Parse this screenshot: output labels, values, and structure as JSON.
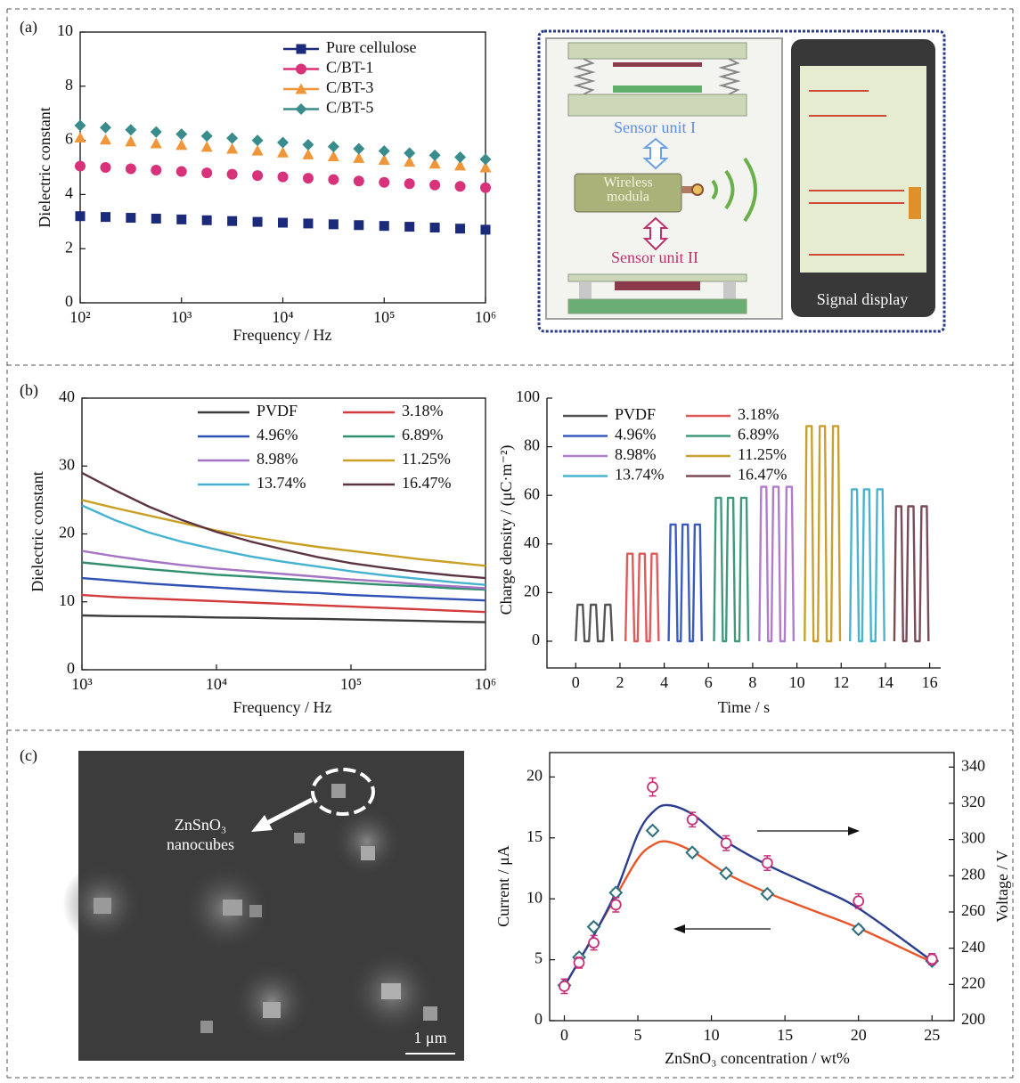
{
  "panel_labels": [
    "(a)",
    "(b)",
    "(c)"
  ],
  "diagram": {
    "sensor_unit_1": "Sensor unit I",
    "wireless_module": [
      "Wireless",
      "modula"
    ],
    "sensor_unit_2": "Sensor unit II",
    "signal_display": "Signal display"
  },
  "micrograph": {
    "label": [
      "ZnSnO₃",
      "nanocubes"
    ],
    "scale_bar": "1 μm"
  },
  "chart_data": [
    {
      "type": "line",
      "xlabel": "Frequency / Hz",
      "ylabel": "Dielectric constant",
      "xscale": "log",
      "xlim": [
        100,
        1000000
      ],
      "ylim": [
        0,
        10
      ],
      "xticks": [
        {
          "value": 100,
          "label": "10²"
        },
        {
          "value": 1000,
          "label": "10³"
        },
        {
          "value": 10000,
          "label": "10⁴"
        },
        {
          "value": 100000,
          "label": "10⁵"
        },
        {
          "value": 1000000,
          "label": "10⁶"
        }
      ],
      "yticks": [
        0,
        2,
        4,
        6,
        8,
        10
      ],
      "x": [
        100,
        178,
        316,
        562,
        1000,
        1778,
        3162,
        5623,
        10000,
        17783,
        31623,
        56234,
        100000,
        177828,
        316228,
        562341,
        1000000
      ],
      "series": [
        {
          "name": "Pure cellulose",
          "color": "#1b2a7a",
          "marker": "square",
          "line": false,
          "values": [
            3.2,
            3.17,
            3.14,
            3.11,
            3.08,
            3.05,
            3.02,
            2.99,
            2.96,
            2.93,
            2.9,
            2.87,
            2.84,
            2.81,
            2.78,
            2.74,
            2.7
          ]
        },
        {
          "name": "C/BT-1",
          "color": "#d8327a",
          "marker": "circle",
          "line": false,
          "values": [
            5.05,
            5.0,
            4.95,
            4.9,
            4.85,
            4.8,
            4.75,
            4.7,
            4.65,
            4.6,
            4.55,
            4.5,
            4.45,
            4.4,
            4.35,
            4.3,
            4.25
          ]
        },
        {
          "name": "C/BT-3",
          "color": "#f0963a",
          "marker": "triangle",
          "line": false,
          "values": [
            6.1,
            6.03,
            5.96,
            5.89,
            5.83,
            5.76,
            5.69,
            5.62,
            5.55,
            5.48,
            5.41,
            5.35,
            5.28,
            5.21,
            5.14,
            5.07,
            5.0
          ]
        },
        {
          "name": "C/BT-5",
          "color": "#3a8c8c",
          "marker": "diamond",
          "line": false,
          "values": [
            6.55,
            6.47,
            6.39,
            6.31,
            6.23,
            6.16,
            6.08,
            6.0,
            5.92,
            5.84,
            5.77,
            5.69,
            5.61,
            5.53,
            5.45,
            5.38,
            5.3
          ]
        }
      ]
    },
    {
      "type": "line",
      "xlabel": "Frequency / Hz",
      "ylabel": "Dielectric constant",
      "xscale": "log",
      "xlim": [
        1000,
        1000000
      ],
      "ylim": [
        0,
        40
      ],
      "xticks": [
        {
          "value": 1000,
          "label": "10³"
        },
        {
          "value": 10000,
          "label": "10⁴"
        },
        {
          "value": 100000,
          "label": "10⁵"
        },
        {
          "value": 1000000,
          "label": "10⁶"
        }
      ],
      "yticks": [
        0,
        10,
        20,
        30,
        40
      ],
      "x": [
        1000,
        1778,
        3162,
        5623,
        10000,
        17783,
        31623,
        56234,
        100000,
        177828,
        316228,
        562341,
        1000000
      ],
      "series": [
        {
          "name": "PVDF",
          "color": "#3c3c3c",
          "values": [
            8.0,
            7.9,
            7.85,
            7.8,
            7.7,
            7.65,
            7.55,
            7.5,
            7.4,
            7.3,
            7.2,
            7.1,
            7.0
          ]
        },
        {
          "name": "3.18%",
          "color": "#d23c3c",
          "values": [
            11.0,
            10.7,
            10.5,
            10.3,
            10.1,
            9.9,
            9.7,
            9.5,
            9.3,
            9.1,
            8.9,
            8.7,
            8.5
          ]
        },
        {
          "name": "4.96%",
          "color": "#2f50b4",
          "values": [
            13.5,
            13.1,
            12.7,
            12.4,
            12.1,
            11.8,
            11.5,
            11.3,
            11.0,
            10.8,
            10.6,
            10.4,
            10.2
          ]
        },
        {
          "name": "6.89%",
          "color": "#2f8f6f",
          "values": [
            15.8,
            15.3,
            14.8,
            14.4,
            14.0,
            13.7,
            13.4,
            13.1,
            12.8,
            12.5,
            12.3,
            12.0,
            11.8
          ]
        },
        {
          "name": "8.98%",
          "color": "#a574c4",
          "values": [
            17.5,
            16.7,
            16.0,
            15.4,
            14.9,
            14.5,
            14.1,
            13.7,
            13.3,
            13.0,
            12.6,
            12.3,
            12.0
          ]
        },
        {
          "name": "11.25%",
          "color": "#c9a024",
          "values": [
            25.0,
            23.8,
            22.7,
            21.6,
            20.5,
            19.6,
            18.8,
            18.1,
            17.5,
            16.9,
            16.3,
            15.8,
            15.3
          ]
        },
        {
          "name": "13.74%",
          "color": "#45b2d2",
          "values": [
            24.2,
            22.0,
            20.2,
            18.8,
            17.7,
            16.7,
            15.9,
            15.2,
            14.5,
            13.9,
            13.4,
            12.9,
            12.5
          ]
        },
        {
          "name": "16.47%",
          "color": "#5c3444",
          "values": [
            29.0,
            26.4,
            24.0,
            22.0,
            20.3,
            18.9,
            17.7,
            16.6,
            15.7,
            15.0,
            14.4,
            13.9,
            13.5
          ]
        }
      ]
    },
    {
      "type": "line",
      "xlabel": "Time / s",
      "ylabel": "Charge density / (μC·m⁻²)",
      "xlim": [
        -1.3,
        16.5
      ],
      "ylim": [
        -11,
        100
      ],
      "xticks": [
        0,
        2,
        4,
        6,
        8,
        10,
        12,
        14,
        16
      ],
      "yticks": [
        0,
        20,
        40,
        60,
        80,
        100
      ],
      "series": [
        {
          "name": "PVDF",
          "color": "#555555",
          "x": [
            0,
            0.08,
            0.32,
            0.4,
            0.6,
            0.68,
            0.92,
            1.0,
            1.25,
            1.33,
            1.57,
            1.65
          ],
          "values": [
            0,
            15,
            15,
            0,
            0,
            15,
            15,
            0,
            0,
            15,
            15,
            0
          ]
        },
        {
          "name": "3.18%",
          "color": "#e05a5a",
          "x": [
            2.25,
            2.33,
            2.57,
            2.65,
            2.8,
            2.88,
            3.12,
            3.2,
            3.35,
            3.43,
            3.67,
            3.75
          ],
          "values": [
            0,
            36,
            36,
            0,
            0,
            36,
            36,
            0,
            0,
            36,
            36,
            0
          ]
        },
        {
          "name": "4.96%",
          "color": "#3a5cc0",
          "x": [
            4.2,
            4.28,
            4.52,
            4.6,
            4.75,
            4.83,
            5.07,
            5.15,
            5.3,
            5.38,
            5.62,
            5.7
          ],
          "values": [
            0,
            48,
            48,
            0,
            0,
            48,
            48,
            0,
            0,
            48,
            48,
            0
          ]
        },
        {
          "name": "6.89%",
          "color": "#3f9a7a",
          "x": [
            6.25,
            6.33,
            6.57,
            6.65,
            6.8,
            6.88,
            7.12,
            7.2,
            7.4,
            7.48,
            7.72,
            7.8
          ],
          "values": [
            0,
            59,
            59,
            0,
            0,
            59,
            59,
            0,
            0,
            59,
            59,
            0
          ]
        },
        {
          "name": "8.98%",
          "color": "#b07ccc",
          "x": [
            8.3,
            8.38,
            8.62,
            8.7,
            8.85,
            8.93,
            9.17,
            9.25,
            9.45,
            9.53,
            9.77,
            9.85
          ],
          "values": [
            0,
            63.5,
            63.5,
            0,
            0,
            63.5,
            63.5,
            0,
            0,
            63.5,
            63.5,
            0
          ]
        },
        {
          "name": "11.25%",
          "color": "#c9a030",
          "x": [
            10.35,
            10.43,
            10.67,
            10.75,
            10.95,
            11.03,
            11.27,
            11.35,
            11.55,
            11.63,
            11.87,
            11.95
          ],
          "values": [
            0,
            88.5,
            88.5,
            0,
            0,
            88.5,
            88.5,
            0,
            0,
            88.5,
            88.5,
            0
          ]
        },
        {
          "name": "13.74%",
          "color": "#4ab4cf",
          "x": [
            12.4,
            12.48,
            12.72,
            12.8,
            12.95,
            13.03,
            13.27,
            13.35,
            13.55,
            13.63,
            13.87,
            13.95
          ],
          "values": [
            0,
            62.5,
            62.5,
            0,
            0,
            62.5,
            62.5,
            0,
            0,
            62.5,
            62.5,
            0
          ]
        },
        {
          "name": "16.47%",
          "color": "#7a4a58",
          "x": [
            14.4,
            14.48,
            14.72,
            14.8,
            14.95,
            15.03,
            15.27,
            15.35,
            15.55,
            15.63,
            15.87,
            15.95
          ],
          "values": [
            0,
            55.5,
            55.5,
            0,
            0,
            55.5,
            55.5,
            0,
            0,
            55.5,
            55.5,
            0
          ]
        }
      ]
    },
    {
      "type": "line",
      "xlabel": "ZnSnO₃ concentration / wt%",
      "ylabel": "Current / μA",
      "y2label": "Voltage / V",
      "xlim": [
        -1,
        26.5
      ],
      "ylim": [
        0,
        22
      ],
      "y2lim": [
        200,
        348
      ],
      "xticks": [
        0,
        5,
        10,
        15,
        20,
        25
      ],
      "yticks": [
        0,
        5,
        10,
        15,
        20
      ],
      "y2ticks": [
        200,
        220,
        240,
        260,
        280,
        300,
        320,
        340
      ],
      "series": [
        {
          "color": "#2e6f7e",
          "marker": "diamond-open",
          "line": false,
          "x": [
            0,
            1,
            2,
            3.5,
            6,
            8.7,
            11,
            13.8,
            20,
            25
          ],
          "values": [
            2.9,
            5.2,
            7.7,
            10.5,
            15.6,
            13.8,
            12.1,
            10.4,
            7.5,
            4.9
          ],
          "errors": [
            0.3,
            0.3,
            0.3,
            0.3,
            0.3,
            0.3,
            0.3,
            0.3,
            0.3,
            0.3
          ]
        },
        {
          "color": "#c8307a",
          "marker": "circle-open",
          "line": false,
          "axis": "y2",
          "x": [
            0,
            1,
            2,
            3.5,
            6,
            8.7,
            11,
            13.8,
            20,
            25
          ],
          "values": [
            219,
            232,
            243,
            264,
            329,
            311,
            298,
            287,
            266,
            234
          ],
          "errors": [
            4,
            3,
            4,
            4,
            5,
            4,
            4,
            4,
            4,
            3
          ]
        },
        {
          "color": "#e8562a",
          "smooth": true,
          "x": [
            0,
            1,
            2,
            3.5,
            5,
            6,
            7,
            8.7,
            11,
            13.8,
            17,
            20,
            25
          ],
          "values": [
            2.8,
            4.9,
            7.0,
            10.2,
            13.3,
            14.4,
            14.7,
            13.9,
            12.1,
            10.5,
            9.0,
            7.6,
            4.8
          ]
        },
        {
          "color": "#2c3e8f",
          "smooth": true,
          "axis": "y2",
          "x": [
            0,
            1,
            2,
            3.5,
            5,
            6,
            7,
            8.7,
            11,
            13.8,
            17,
            20,
            25
          ],
          "values": [
            219,
            233,
            247,
            271,
            303,
            315,
            319,
            314,
            299,
            286,
            274,
            262,
            233
          ]
        }
      ]
    }
  ]
}
